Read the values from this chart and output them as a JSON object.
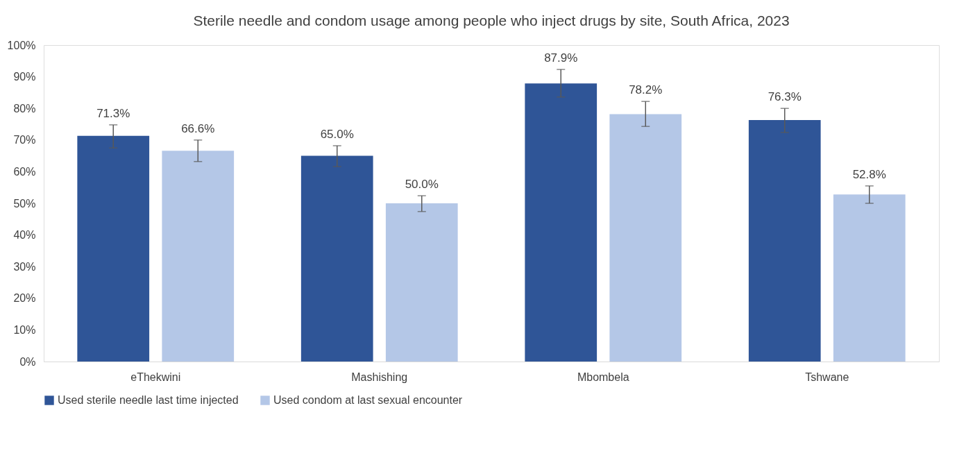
{
  "chart_data": {
    "type": "bar",
    "title": "Sterile needle and condom usage among people who inject drugs by site, South Africa, 2023",
    "categories": [
      "eThekwini",
      "Mashishing",
      "Mbombela",
      "Tshwane"
    ],
    "series": [
      {
        "name": "Used sterile needle last time injected",
        "color": "#2f5597",
        "values": [
          71.3,
          65.0,
          87.9,
          76.3
        ],
        "value_labels": [
          "71.3%",
          "65.0%",
          "87.9%",
          "76.3%"
        ],
        "errors": [
          [
            67.5,
            74.8
          ],
          [
            61.6,
            68.2
          ],
          [
            83.6,
            92.3
          ],
          [
            72.4,
            80.0
          ]
        ]
      },
      {
        "name": "Used condom at last sexual encounter",
        "color": "#b4c7e7",
        "values": [
          66.6,
          50.0,
          78.2,
          52.8
        ],
        "value_labels": [
          "66.6%",
          "50.0%",
          "78.2%",
          "52.8%"
        ],
        "errors": [
          [
            63.2,
            70.0
          ],
          [
            47.4,
            52.4
          ],
          [
            74.3,
            82.2
          ],
          [
            50.0,
            55.5
          ]
        ]
      }
    ],
    "ylim": [
      0,
      100
    ],
    "yticks": [
      {
        "value": 0,
        "label": "0%"
      },
      {
        "value": 10,
        "label": "10%"
      },
      {
        "value": 20,
        "label": "20%"
      },
      {
        "value": 30,
        "label": "30%"
      },
      {
        "value": 40,
        "label": "40%"
      },
      {
        "value": 50,
        "label": "50%"
      },
      {
        "value": 60,
        "label": "60%"
      },
      {
        "value": 70,
        "label": "70%"
      },
      {
        "value": 80,
        "label": "80%"
      },
      {
        "value": 90,
        "label": "90%"
      },
      {
        "value": 100,
        "label": "100%"
      }
    ],
    "grid": false,
    "legend": "bottom"
  }
}
